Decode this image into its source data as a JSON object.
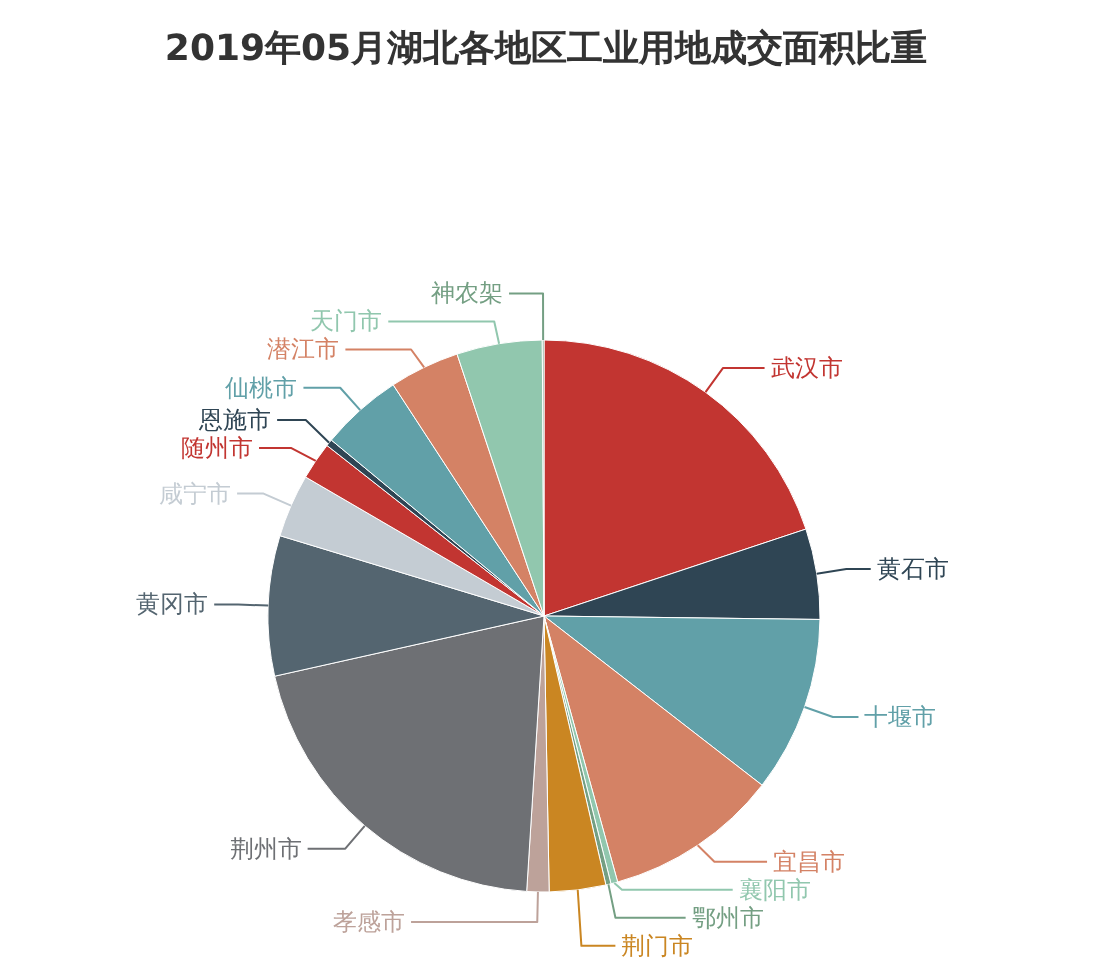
{
  "chart_data": {
    "type": "pie",
    "title": "2019年05月湖北各地区工业用地成交面积比重",
    "categories": [
      "武汉市",
      "黄石市",
      "十堰市",
      "宜昌市",
      "襄阳市",
      "鄂州市",
      "荆门市",
      "孝感市",
      "荆州市",
      "黄冈市",
      "咸宁市",
      "随州市",
      "恩施市",
      "仙桃市",
      "潜江市",
      "天门市",
      "神农架"
    ],
    "values": [
      19.9,
      5.3,
      10.3,
      10.2,
      0.4,
      0.3,
      3.3,
      1.3,
      20.5,
      8.2,
      3.7,
      2.2,
      0.4,
      4.8,
      4.1,
      5.0,
      0.1
    ],
    "colors": [
      "#c23531",
      "#2f4554",
      "#61a0a8",
      "#d48265",
      "#91c7ae",
      "#749f83",
      "#ca8622",
      "#bda29a",
      "#6e7074",
      "#546570",
      "#c4ccd3",
      "#c23531",
      "#2f4554",
      "#61a0a8",
      "#d48265",
      "#91c7ae",
      "#749f83"
    ]
  }
}
